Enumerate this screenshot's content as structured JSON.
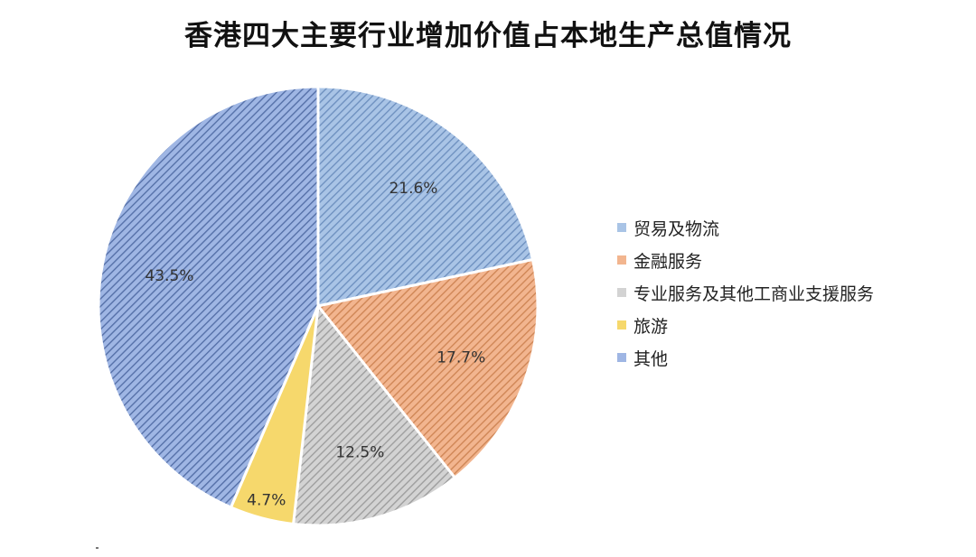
{
  "chart_data": {
    "type": "pie",
    "title": "香港四大主要行业增加价值占本地生产总值情况",
    "slices": [
      {
        "label": "贸易及物流",
        "value": 21.6,
        "value_label": "21.6%",
        "color": "#a9c4e6",
        "hatch": "#6f91c0"
      },
      {
        "label": "金融服务",
        "value": 17.7,
        "value_label": "17.7%",
        "color": "#f2b58f",
        "hatch": "#cf8656"
      },
      {
        "label": "专业服务及其他工商业支援服务",
        "value": 12.5,
        "value_label": "12.5%",
        "color": "#d3d3d3",
        "hatch": "#9e9e9e"
      },
      {
        "label": "旅游",
        "value": 4.7,
        "value_label": "4.7%",
        "color": "#f6d86c",
        "hatch": null
      },
      {
        "label": "其他",
        "value": 43.5,
        "value_label": "43.5%",
        "color": "#9fb6e4",
        "hatch": "#5570a8"
      }
    ],
    "legend_position": "right"
  }
}
